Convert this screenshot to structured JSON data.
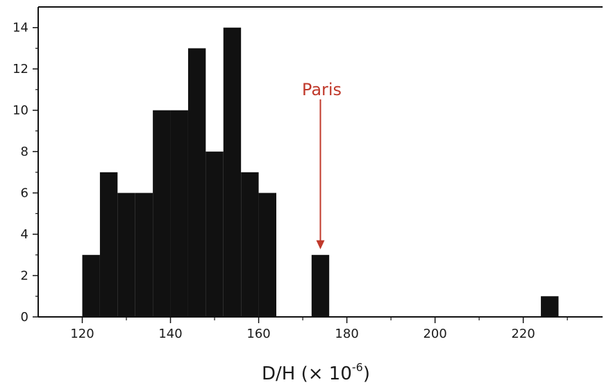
{
  "chart_data": {
    "type": "bar",
    "title": "",
    "xlabel": "D/H (× 10",
    "xlabel_exponent": "-6",
    "xlabel_suffix": ")",
    "ylabel": "",
    "xlim": [
      110,
      238
    ],
    "ylim": [
      0,
      15
    ],
    "x_ticks": [
      120,
      140,
      160,
      180,
      200,
      220
    ],
    "y_ticks": [
      0,
      2,
      4,
      6,
      8,
      10,
      12,
      14
    ],
    "bin_width": 4,
    "bins": [
      {
        "x0": 120,
        "value": 3
      },
      {
        "x0": 124,
        "value": 7
      },
      {
        "x0": 128,
        "value": 6
      },
      {
        "x0": 132,
        "value": 6
      },
      {
        "x0": 136,
        "value": 10
      },
      {
        "x0": 140,
        "value": 10
      },
      {
        "x0": 144,
        "value": 13
      },
      {
        "x0": 148,
        "value": 8
      },
      {
        "x0": 152,
        "value": 14
      },
      {
        "x0": 156,
        "value": 7
      },
      {
        "x0": 160,
        "value": 6
      },
      {
        "x0": 172,
        "value": 3
      },
      {
        "x0": 224,
        "value": 1
      }
    ],
    "bar_color": "#111111",
    "annotation": {
      "text": "Paris",
      "x": 174,
      "y": 3,
      "color": "#c0392b"
    },
    "grid": false
  }
}
